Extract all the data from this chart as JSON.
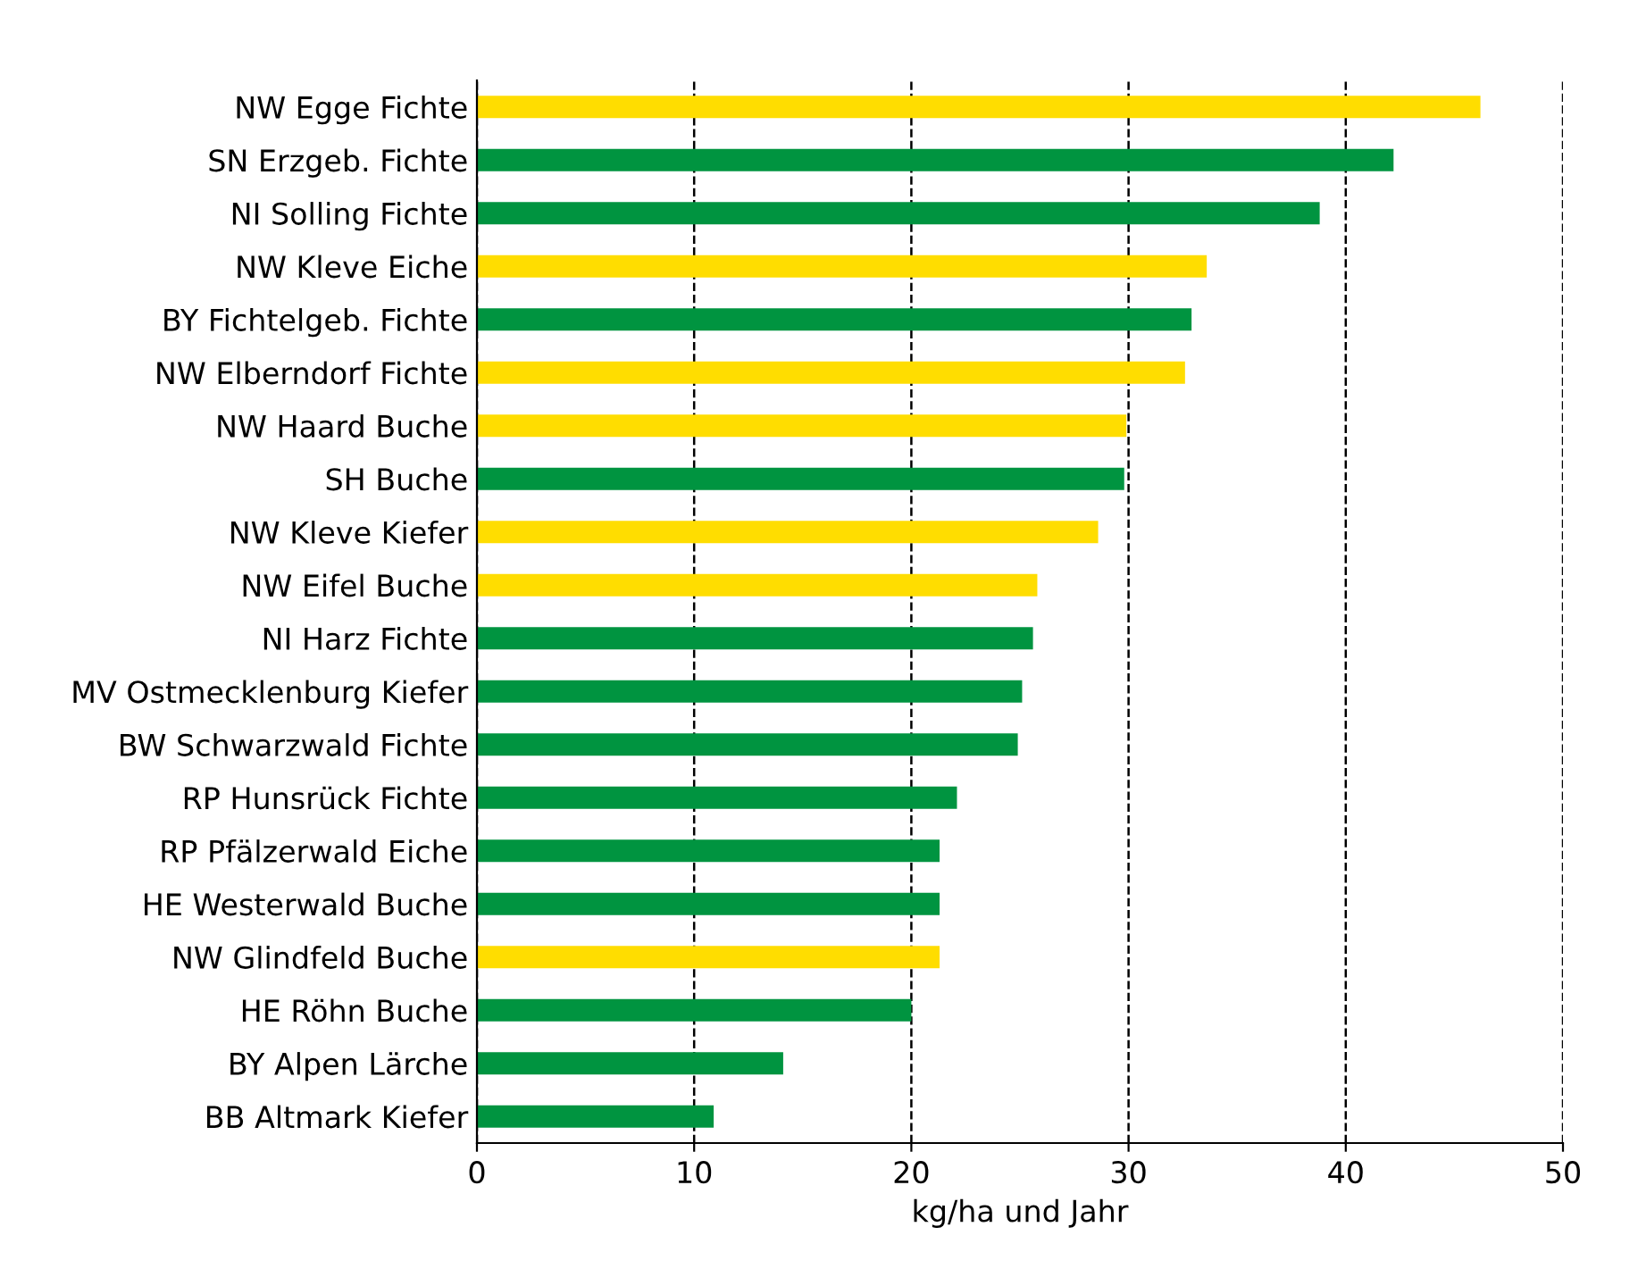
{
  "chart_data": {
    "type": "bar",
    "orientation": "horizontal",
    "xlabel": "kg/ha und Jahr",
    "categories": [
      "NW Egge Fichte",
      "SN Erzgeb. Fichte",
      "NI Solling Fichte",
      "NW Kleve Eiche",
      "BY Fichtelgeb. Fichte",
      "NW Elberndorf Fichte",
      "NW Haard Buche",
      "SH Buche",
      "NW Kleve Kiefer",
      "NW Eifel Buche",
      "NI Harz Fichte",
      "MV Ostmecklenburg Kiefer",
      "BW Schwarzwald Fichte",
      "RP Hunsrück Fichte",
      "RP Pfälzerwald Eiche",
      "HE Westerwald Buche",
      "NW Glindfeld Buche",
      "HE Röhn Buche",
      "BY Alpen Lärche",
      "BB Altmark Kiefer"
    ],
    "values": [
      46.2,
      42.2,
      38.8,
      33.6,
      32.9,
      32.6,
      29.9,
      29.8,
      28.6,
      25.8,
      25.6,
      25.1,
      24.9,
      22.1,
      21.3,
      21.3,
      21.3,
      20.0,
      14.1,
      10.9
    ],
    "colors": [
      "#ffdd00",
      "#009440",
      "#009440",
      "#ffdd00",
      "#009440",
      "#ffdd00",
      "#ffdd00",
      "#009440",
      "#ffdd00",
      "#ffdd00",
      "#009440",
      "#009440",
      "#009440",
      "#009440",
      "#009440",
      "#009440",
      "#ffdd00",
      "#009440",
      "#009440",
      "#009440"
    ],
    "xlim": [
      0,
      50
    ],
    "xticks": [
      0,
      10,
      20,
      30,
      40,
      50
    ],
    "grid": "x",
    "line_style": "dashed",
    "legend": false
  }
}
